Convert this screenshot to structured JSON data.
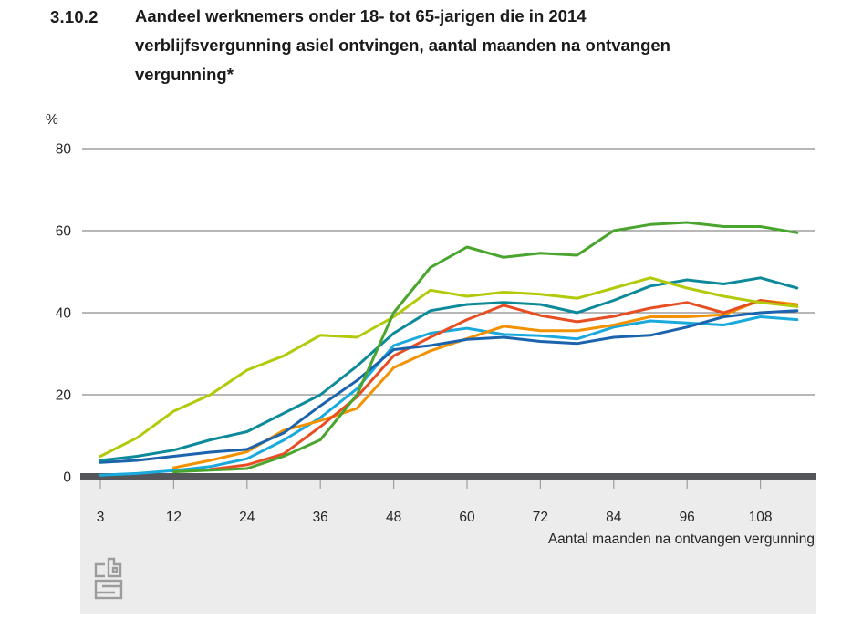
{
  "figure": {
    "number": "3.10.2",
    "title_lines": [
      "Aandeel werknemers onder 18- tot 65-jarigen die in 2014",
      "verblijfsvergunning asiel ontvingen, aantal maanden na ontvangen",
      "vergunning*"
    ]
  },
  "chart_data": {
    "type": "line",
    "title": "Aandeel werknemers onder 18- tot 65-jarigen die in 2014 verblijfsvergunning asiel ontvingen, aantal maanden na ontvangen vergunning*",
    "unit_label": "%",
    "xlabel": "Aantal maanden na ontvangen vergunning",
    "ylabel": "",
    "ylim": [
      0,
      80
    ],
    "grid": "horizontal",
    "legend_position": "none",
    "x_months": [
      3,
      6,
      12,
      18,
      24,
      30,
      36,
      42,
      48,
      54,
      60,
      66,
      72,
      78,
      84,
      90,
      96,
      102,
      108,
      114
    ],
    "x_tick_labels": [
      "3",
      "12",
      "24",
      "36",
      "48",
      "60",
      "72",
      "84",
      "96",
      "108"
    ],
    "x_tick_months": [
      3,
      12,
      24,
      36,
      48,
      60,
      72,
      84,
      96,
      108
    ],
    "y_ticks": [
      0,
      20,
      40,
      60,
      80
    ],
    "series": [
      {
        "id": "series-lichtblauw",
        "color": "#19a9dc",
        "values": [
          0.4,
          0.8,
          1.5,
          2.5,
          4.4,
          8.9,
          14.4,
          21.5,
          32,
          35,
          36.2,
          34.7,
          34.4,
          33.6,
          36.5,
          38,
          37.5,
          37,
          39,
          38.3
        ]
      },
      {
        "id": "series-oranje",
        "color": "#f39200",
        "values": [
          null,
          null,
          2.2,
          4,
          6.1,
          11.3,
          13.7,
          16.7,
          26.6,
          30.7,
          33.7,
          36.7,
          35.6,
          35.6,
          37,
          39,
          39,
          39.5,
          43,
          42
        ]
      },
      {
        "id": "series-rood",
        "color": "#e84e23",
        "values": [
          null,
          null,
          null,
          1.8,
          2.9,
          5.6,
          12.2,
          19.5,
          29.5,
          34,
          38.3,
          41.8,
          39.3,
          37.8,
          39.1,
          41.1,
          42.5,
          40,
          43,
          41.5
        ]
      },
      {
        "id": "series-blauw",
        "color": "#1c63ad",
        "values": [
          3.5,
          4,
          5,
          6,
          6.7,
          10.7,
          17.3,
          23.5,
          31,
          32,
          33.5,
          34,
          33,
          32.5,
          34,
          34.5,
          36.5,
          39,
          40,
          40.5
        ]
      },
      {
        "id": "series-petrol",
        "color": "#0d8a99",
        "values": [
          4,
          5,
          6.5,
          9,
          11,
          15.5,
          20,
          27,
          35,
          40.5,
          42,
          42.5,
          42,
          40,
          43,
          46.5,
          48,
          47,
          48.5,
          46
        ]
      },
      {
        "id": "series-lichtgroen",
        "color": "#b2ca09",
        "values": [
          5,
          9.5,
          16,
          20,
          26,
          29.5,
          34.5,
          34,
          39,
          45.5,
          44,
          45,
          44.5,
          43.5,
          46,
          48.5,
          46,
          44,
          42.5,
          41.5
        ]
      },
      {
        "id": "series-donkergroen",
        "color": "#4aa52e",
        "values": [
          null,
          null,
          1.2,
          1.6,
          2,
          5,
          9,
          20,
          40,
          51,
          56,
          53.5,
          54.5,
          54,
          60,
          61.5,
          62,
          61,
          61,
          59.5
        ]
      }
    ],
    "colors": {
      "gridline": "#6f6f6f",
      "zero_axis_bar": "#55565a",
      "below_axis_band": "#ececec",
      "tick": "#9f9f9f",
      "logo": "#9c9c9c"
    }
  },
  "branding": {
    "logo_name": "cbs-logo"
  }
}
